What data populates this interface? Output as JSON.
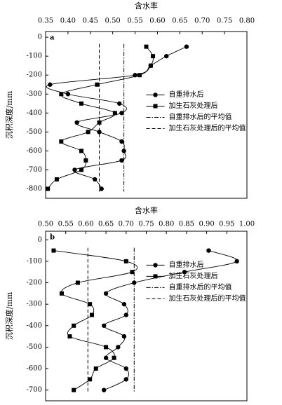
{
  "chart_data": [
    {
      "type": "line",
      "label": "a",
      "x_label": "含水率",
      "y_label": "沉积深度/mm",
      "xlim": [
        0.35,
        0.8
      ],
      "xticks": [
        0.35,
        {
          "value": 0.4,
          "label": "0.40"
        },
        0.45,
        {
          "value": 0.5,
          "label": "0.50"
        },
        0.55,
        {
          "value": 0.6,
          "label": "0.60"
        },
        0.65,
        {
          "value": 0.7,
          "label": "0.70"
        },
        0.75,
        {
          "value": 0.8,
          "label": "0.80"
        }
      ],
      "ylim": [
        -850,
        30
      ],
      "yticks": [
        0,
        -100,
        -200,
        -300,
        -400,
        -500,
        -600,
        -700,
        -800
      ],
      "y": [
        -50,
        -100,
        -150,
        -200,
        -250,
        -300,
        -350,
        -400,
        -450,
        -500,
        -550,
        -600,
        -650,
        -700,
        -750,
        -800
      ],
      "series": [
        {
          "name": "自重排水后",
          "marker": "circle",
          "color": "#000000",
          "values": [
            0.665,
            0.62,
            0.585,
            0.55,
            0.36,
            0.4,
            0.515,
            0.52,
            0.42,
            0.47,
            0.52,
            0.525,
            0.52,
            0.415,
            0.46,
            0.475
          ]
        },
        {
          "name": "加生石灰处理后",
          "marker": "square",
          "color": "#000000",
          "values": [
            0.575,
            0.59,
            0.585,
            0.56,
            0.465,
            0.385,
            0.43,
            0.505,
            0.47,
            0.445,
            0.385,
            0.43,
            0.44,
            0.43,
            0.375,
            0.355
          ]
        }
      ],
      "reference_lines": [
        {
          "name": "自重排水后的平均值",
          "value": 0.525,
          "dash": "dashdot"
        },
        {
          "name": "加生石灰处理后的平均值",
          "value": 0.47,
          "dash": "dash"
        }
      ],
      "legend": "center-right"
    },
    {
      "type": "line",
      "label": "b",
      "x_label": "含水率",
      "y_label": "沉积深度/mm",
      "xlim": [
        0.5,
        1.0
      ],
      "xticks": [
        {
          "value": 0.5,
          "label": "0.50"
        },
        0.55,
        {
          "value": 0.6,
          "label": "0.60"
        },
        0.65,
        {
          "value": 0.7,
          "label": "0.70"
        },
        0.75,
        {
          "value": 0.8,
          "label": "0.80"
        },
        0.85,
        {
          "value": 0.9,
          "label": "0.90"
        },
        0.95,
        {
          "value": 1.0,
          "label": "1.00"
        }
      ],
      "ylim": [
        -750,
        40
      ],
      "yticks": [
        0,
        -100,
        -200,
        -300,
        -400,
        -500,
        -600,
        -700
      ],
      "y": [
        -50,
        -100,
        -150,
        -200,
        -250,
        -300,
        -350,
        -400,
        -450,
        -500,
        -550,
        -600,
        -650,
        -700
      ],
      "series": [
        {
          "name": "自重排水后",
          "marker": "circle",
          "color": "#000000",
          "values": [
            0.905,
            0.975,
            0.845,
            0.72,
            0.65,
            0.695,
            0.7,
            0.645,
            0.695,
            0.68,
            0.65,
            0.7,
            0.7,
            0.645
          ]
        },
        {
          "name": "加生石灰处理后",
          "marker": "square",
          "color": "#000000",
          "values": [
            0.52,
            0.7,
            0.715,
            0.58,
            0.54,
            0.61,
            0.615,
            0.57,
            0.56,
            0.65,
            0.67,
            0.625,
            0.61,
            0.57
          ]
        }
      ],
      "reference_lines": [
        {
          "name": "自重排水后的平均值",
          "value": 0.72,
          "dash": "dashdot"
        },
        {
          "name": "加生石灰处理后的平均值",
          "value": 0.605,
          "dash": "dash"
        }
      ],
      "legend": "upper-right"
    }
  ]
}
